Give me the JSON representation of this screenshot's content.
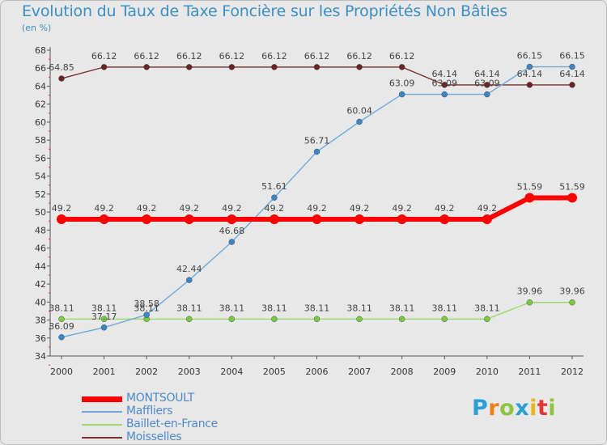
{
  "title": "Evolution du Taux de Taxe Foncière sur les Propriétés Non Bâties",
  "unit_label": "(en %)",
  "logo": {
    "text": "Proxiti",
    "parts": [
      "P",
      "r",
      "o",
      "x",
      "i",
      "t",
      "i"
    ]
  },
  "chart_data": {
    "type": "line",
    "title": "Evolution du Taux de Taxe Foncière sur les Propriétés Non Bâties",
    "ylabel": "(en %)",
    "xlabel": "",
    "ylim": [
      34,
      68
    ],
    "yticks": [
      34,
      36,
      38,
      40,
      42,
      44,
      46,
      48,
      50,
      52,
      54,
      56,
      58,
      60,
      62,
      64,
      66,
      68
    ],
    "x": [
      2000,
      2001,
      2002,
      2003,
      2004,
      2005,
      2006,
      2007,
      2008,
      2009,
      2010,
      2011,
      2012
    ],
    "x_labels": [
      "2000",
      "2001",
      "2002",
      "2003",
      "2004",
      "2005",
      "2006",
      "2007",
      "2008",
      "2009",
      "2010",
      "2011",
      "2012"
    ],
    "grid": false,
    "legend_position": "bottom-left",
    "series": [
      {
        "name": "MONTSOULT",
        "color": "#ff0000",
        "marker_color": "#ff0000",
        "values": [
          49.2,
          49.2,
          49.2,
          49.2,
          49.2,
          49.2,
          49.2,
          49.2,
          49.2,
          49.2,
          49.2,
          51.59,
          51.59
        ],
        "labels": [
          "49.2",
          "49.2",
          "49.2",
          "49.2",
          "49.2",
          "49.2",
          "49.2",
          "49.2",
          "49.2",
          "49.2",
          "49.2",
          "51.59",
          "51.59"
        ]
      },
      {
        "name": "Maffliers",
        "color": "#6fa8dc",
        "marker_color": "#3d85c6",
        "values": [
          36.09,
          37.17,
          38.58,
          42.44,
          46.68,
          51.61,
          56.71,
          60.04,
          63.09,
          63.09,
          63.09,
          66.15,
          66.15
        ],
        "labels": [
          "36.09",
          "37.17",
          "38.58",
          "42.44",
          "46.68",
          "51.61",
          "56.71",
          "60.04",
          "63.09",
          "63.09",
          "63.09",
          "66.15",
          "66.15"
        ]
      },
      {
        "name": "Baillet-en-France",
        "color": "#9fd86b",
        "marker_color": "#7ac943",
        "values": [
          38.11,
          38.11,
          38.11,
          38.11,
          38.11,
          38.11,
          38.11,
          38.11,
          38.11,
          38.11,
          38.11,
          39.96,
          39.96
        ],
        "labels": [
          "38.11",
          "38.11",
          "38.11",
          "38.11",
          "38.11",
          "38.11",
          "38.11",
          "38.11",
          "38.11",
          "38.11",
          "38.11",
          "39.96",
          "39.96"
        ]
      },
      {
        "name": "Moisselles",
        "color": "#7a2e2e",
        "marker_color": "#6b2424",
        "values": [
          64.85,
          66.12,
          66.12,
          66.12,
          66.12,
          66.12,
          66.12,
          66.12,
          66.12,
          64.14,
          64.14,
          64.14,
          64.14
        ],
        "labels": [
          "64.85",
          "66.12",
          "66.12",
          "66.12",
          "66.12",
          "66.12",
          "66.12",
          "66.12",
          "66.12",
          "64.14",
          "64.14",
          "64.14",
          "64.14"
        ]
      }
    ]
  }
}
